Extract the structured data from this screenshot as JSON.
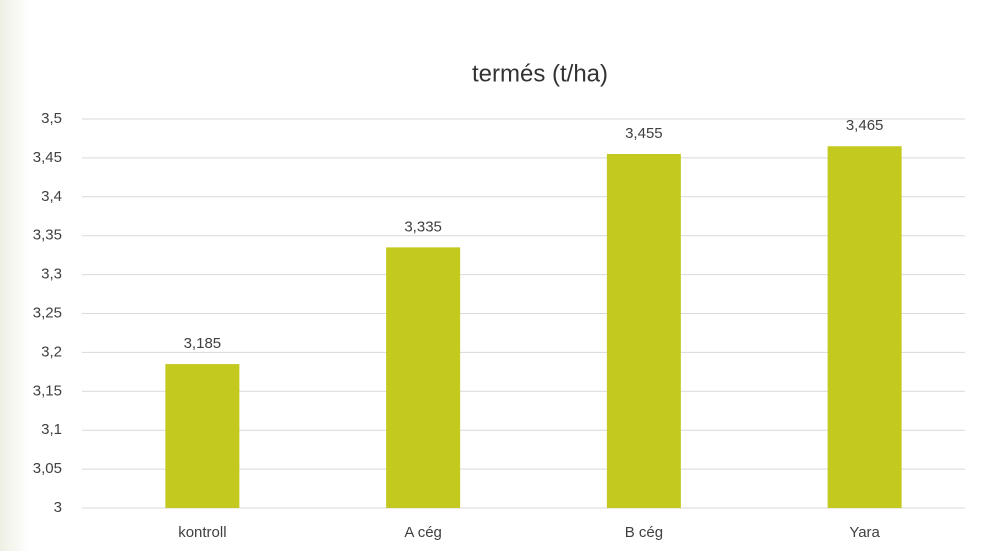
{
  "chart_data": {
    "type": "bar",
    "title": "termés (t/ha)",
    "categories": [
      "kontroll",
      "A cég",
      "B cég",
      "Yara"
    ],
    "values": [
      3.185,
      3.335,
      3.455,
      3.465
    ],
    "value_labels": [
      "3,185",
      "3,335",
      "3,455",
      "3,465"
    ],
    "color": "#c3c91f",
    "ylim": [
      3,
      3.5
    ],
    "yticks": [
      3,
      {
        "value": 3.05,
        "label": "3,05"
      },
      {
        "value": 3.1,
        "label": "3,1"
      },
      {
        "value": 3.15,
        "label": "3,15"
      },
      {
        "value": 3.2,
        "label": "3,2"
      },
      {
        "value": 3.25,
        "label": "3,25"
      },
      {
        "value": 3.3,
        "label": "3,3"
      },
      {
        "value": 3.35,
        "label": "3,35"
      },
      {
        "value": 3.4,
        "label": "3,4"
      },
      {
        "value": 3.45,
        "label": "3,45"
      },
      {
        "value": 3.5,
        "label": "3,5"
      }
    ],
    "grid": true
  }
}
